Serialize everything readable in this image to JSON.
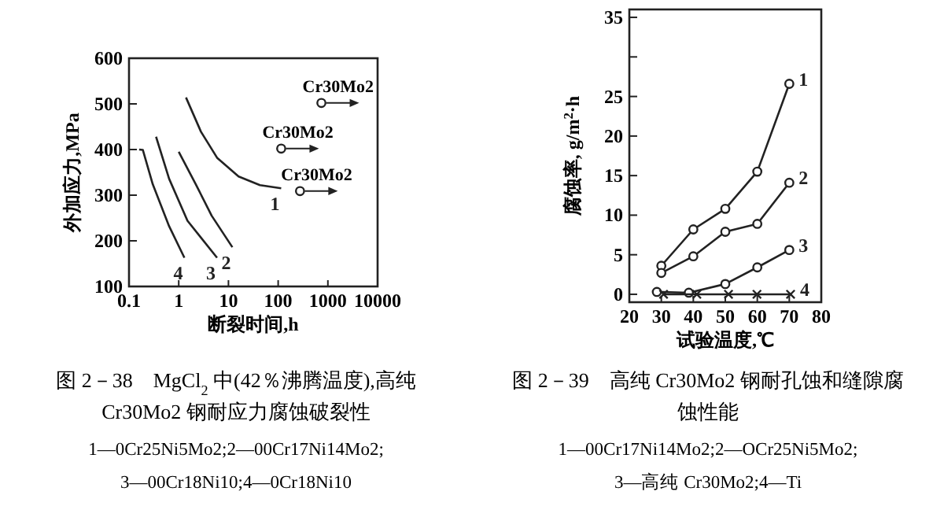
{
  "chart_data": [
    {
      "type": "line",
      "title": "图 2－38　MgCl$_{2}$ 中(42％沸腾温度),高纯 Cr30Mo2 钢耐应力腐蚀破裂性",
      "xlabel": "断裂时间,h",
      "ylabel": "外加应力,MPa",
      "log": "x",
      "xlim": [
        0.1,
        10000
      ],
      "xticks": [
        0.1,
        1,
        10,
        100,
        1000,
        10000
      ],
      "ylim": [
        100,
        600
      ],
      "yticks": [
        100,
        200,
        300,
        400,
        500,
        600
      ],
      "marker": "none",
      "grid": false,
      "series": [
        {
          "name": "1",
          "color": "#222222",
          "x": [
            1.4,
            2.8,
            5.9,
            16,
            43,
            115
          ],
          "values": [
            514,
            439,
            382,
            341,
            322,
            315
          ]
        },
        {
          "name": "2",
          "color": "#222222",
          "x": [
            1.0,
            2.2,
            4.6,
            12
          ],
          "values": [
            395,
            324,
            255,
            186
          ]
        },
        {
          "name": "3",
          "color": "#222222",
          "x": [
            0.35,
            0.64,
            1.5,
            5.9
          ],
          "values": [
            428,
            336,
            244,
            163
          ]
        },
        {
          "name": "4",
          "color": "#222222",
          "x": [
            0.16,
            0.19,
            0.3,
            0.64,
            1.3
          ],
          "values": [
            400,
            399,
            324,
            232,
            163
          ]
        },
        {
          "type": "scatter",
          "marker": "circle",
          "color": "#222222",
          "x": [
            740,
            115,
            275
          ],
          "values": [
            502,
            402,
            309
          ]
        }
      ],
      "annotations": [
        {
          "text": "Cr30Mo2",
          "x": 740,
          "y": 502
        },
        {
          "text": "Cr30Mo2",
          "x": 115,
          "y": 402
        },
        {
          "text": "Cr30Mo2",
          "x": 275,
          "y": 309
        },
        "1—0Cr25Ni5Mo2;2—00Cr17Ni14Mo2;",
        "3—00Cr18Ni10;4—0Cr18Ni10"
      ]
    },
    {
      "type": "line",
      "title": "图 2－39　高纯 Cr30Mo2 钢耐孔蚀和缝隙腐蚀性能",
      "xlabel": "试验温度,℃",
      "ylabel": "腐蚀率, g/m$^{2}$·h",
      "xlim": [
        20,
        80
      ],
      "xticks": [
        20,
        30,
        40,
        50,
        60,
        70,
        80
      ],
      "ylim": [
        -1,
        36
      ],
      "yticks": [
        0,
        5,
        10,
        15,
        20,
        25,
        {
          "value": 30,
          "label": null
        },
        35
      ],
      "marker": "circle",
      "grid": false,
      "series": [
        {
          "name": "1",
          "color": "#222222",
          "x": [
            30,
            40,
            50,
            60,
            70
          ],
          "values": [
            3.6,
            8.2,
            10.8,
            15.5,
            26.6
          ]
        },
        {
          "name": "2",
          "color": "#222222",
          "x": [
            30,
            40,
            50,
            60,
            70
          ],
          "values": [
            2.7,
            4.8,
            7.9,
            8.9,
            14.1
          ]
        },
        {
          "name": "3",
          "color": "#222222",
          "x": [
            28.6,
            38.6,
            50,
            60,
            70
          ],
          "values": [
            0.3,
            0.2,
            1.3,
            3.4,
            5.6
          ]
        },
        {
          "name": "4",
          "color": "#222222",
          "marker": "cross",
          "x": [
            30.7,
            41.1,
            51,
            59.9,
            70.4
          ],
          "values": [
            0,
            0,
            0,
            0,
            0
          ]
        }
      ],
      "annotations": [
        "1—00Cr17Ni14Mo2;2—OCr25Ni5Mo2;",
        "3—高纯 Cr30Mo2;4—Ti"
      ]
    }
  ]
}
